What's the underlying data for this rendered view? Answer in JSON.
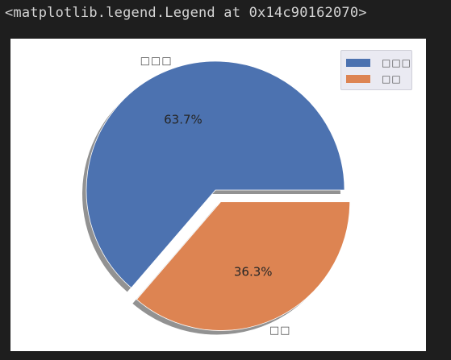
{
  "output": {
    "repr_text": "<matplotlib.legend.Legend at 0x14c90162070>"
  },
  "colors": {
    "series1": "#4c72b0",
    "series2": "#dd8452",
    "shadow": "#7f7f7f"
  },
  "chart_data": {
    "type": "pie",
    "title": "",
    "labels": [
      "□□□",
      "□□"
    ],
    "values": [
      63.7,
      36.3
    ],
    "autopct": [
      "63.7%",
      "36.3%"
    ],
    "explode": [
      0,
      0.1
    ],
    "shadow": true,
    "legend": {
      "entries": [
        "□□□",
        "□□"
      ],
      "placement": "top-right"
    }
  }
}
